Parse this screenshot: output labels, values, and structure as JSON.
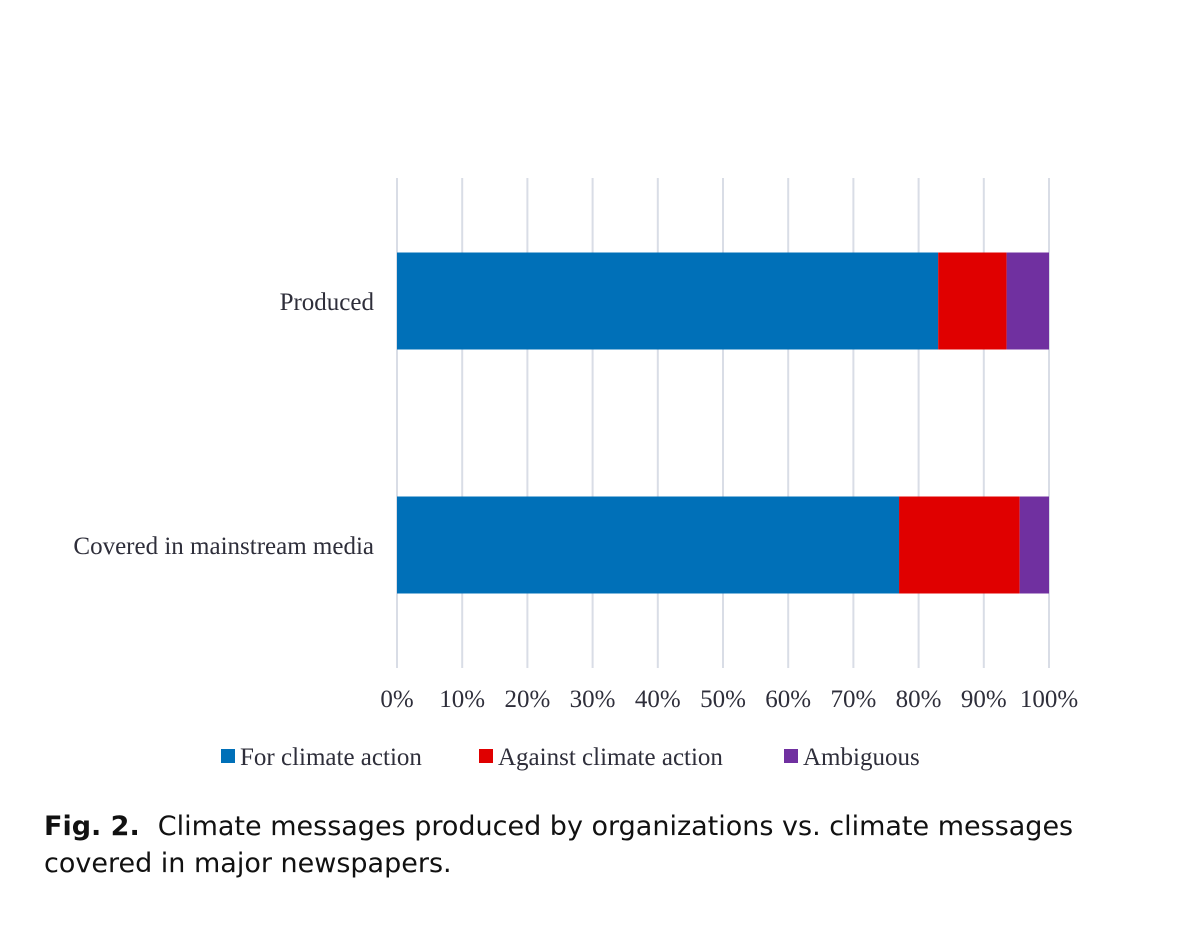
{
  "chart_data": {
    "type": "bar",
    "orientation": "horizontal",
    "stacked": true,
    "categories": [
      "Produced",
      "Covered in mainstream media"
    ],
    "series": [
      {
        "name": "For climate action",
        "color": "#0070b8",
        "values": [
          83,
          77
        ]
      },
      {
        "name": "Against climate action",
        "color": "#e00000",
        "values": [
          10.5,
          18.5
        ]
      },
      {
        "name": "Ambiguous",
        "color": "#7030a0",
        "values": [
          6.5,
          4.5
        ]
      }
    ],
    "x_ticks": [
      "0%",
      "10%",
      "20%",
      "30%",
      "40%",
      "50%",
      "60%",
      "70%",
      "80%",
      "90%",
      "100%"
    ],
    "xlim": [
      0,
      100
    ],
    "grid": true,
    "legend_position": "bottom"
  },
  "caption": {
    "label": "Fig. 2.",
    "text": "Climate messages produced by organizations vs. climate messages covered in major newspapers."
  }
}
